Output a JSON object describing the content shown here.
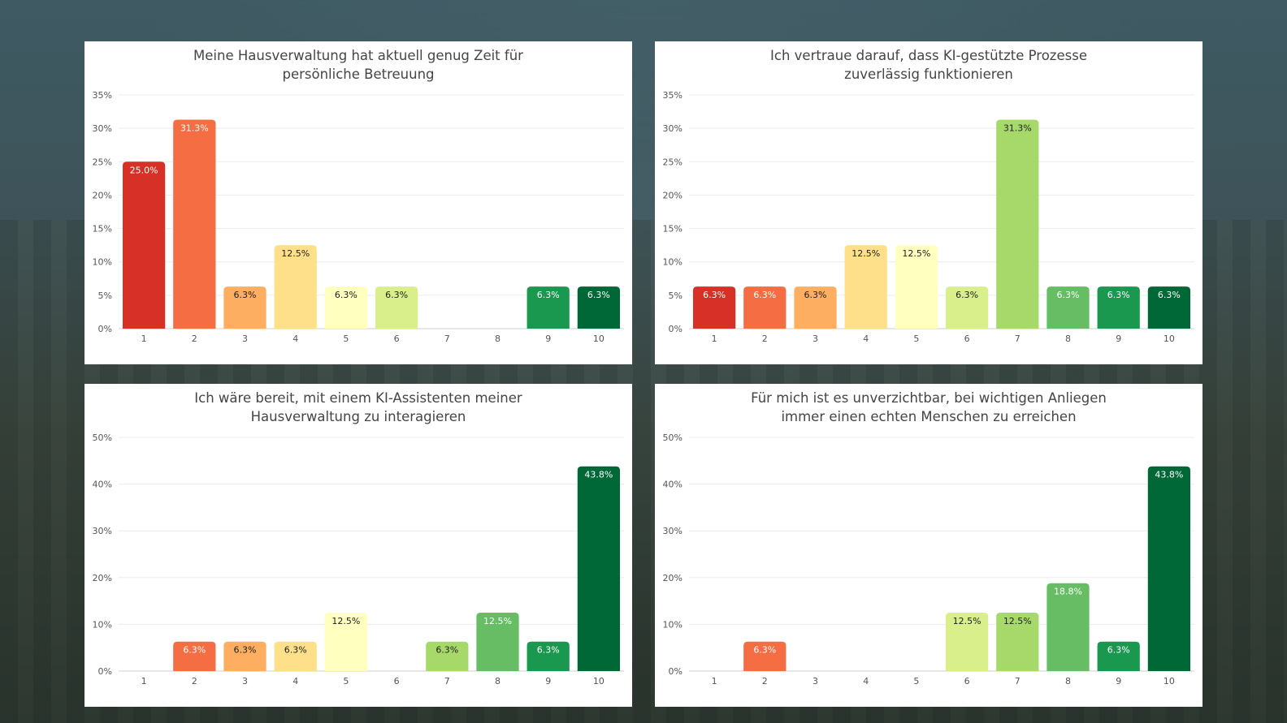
{
  "colors": {
    "1": "#d73027",
    "2": "#f46d43",
    "3": "#fdae61",
    "4": "#fee08b",
    "5": "#ffffbf",
    "6": "#d9ef8b",
    "7": "#a6d96a",
    "8": "#66bd63",
    "9": "#1a9850",
    "10": "#006837"
  },
  "chart_data": [
    {
      "type": "bar",
      "title": "Meine Hausverwaltung hat aktuell genug Zeit für\npersönliche Betreuung",
      "categories": [
        "1",
        "2",
        "3",
        "4",
        "5",
        "6",
        "7",
        "8",
        "9",
        "10"
      ],
      "values": [
        25.0,
        31.3,
        6.3,
        12.5,
        6.3,
        6.3,
        0,
        0,
        6.3,
        6.3
      ],
      "value_labels": [
        "25.0%",
        "31.3%",
        "6.3%",
        "12.5%",
        "6.3%",
        "6.3%",
        "",
        "",
        "6.3%",
        "6.3%"
      ],
      "ylim": [
        0,
        35
      ],
      "yticks": [
        "0%",
        "5%",
        "10%",
        "15%",
        "20%",
        "25%",
        "30%",
        "35%"
      ],
      "xlabel": "",
      "ylabel": "",
      "grid": true,
      "legend": "none"
    },
    {
      "type": "bar",
      "title": "Ich vertraue darauf, dass KI-gestützte Prozesse\nzuverlässig funktionieren",
      "categories": [
        "1",
        "2",
        "3",
        "4",
        "5",
        "6",
        "7",
        "8",
        "9",
        "10"
      ],
      "values": [
        6.3,
        6.3,
        6.3,
        12.5,
        12.5,
        6.3,
        31.3,
        6.3,
        6.3,
        6.3
      ],
      "value_labels": [
        "6.3%",
        "6.3%",
        "6.3%",
        "12.5%",
        "12.5%",
        "6.3%",
        "31.3%",
        "6.3%",
        "6.3%",
        "6.3%"
      ],
      "ylim": [
        0,
        35
      ],
      "yticks": [
        "0%",
        "5%",
        "10%",
        "15%",
        "20%",
        "25%",
        "30%",
        "35%"
      ],
      "xlabel": "",
      "ylabel": "",
      "grid": true,
      "legend": "none"
    },
    {
      "type": "bar",
      "title": "Ich wäre bereit, mit einem KI-Assistenten meiner\nHausverwaltung zu interagieren",
      "categories": [
        "1",
        "2",
        "3",
        "4",
        "5",
        "6",
        "7",
        "8",
        "9",
        "10"
      ],
      "values": [
        0,
        6.3,
        6.3,
        6.3,
        12.5,
        0,
        6.3,
        12.5,
        6.3,
        43.8
      ],
      "value_labels": [
        "",
        "6.3%",
        "6.3%",
        "6.3%",
        "12.5%",
        "",
        "6.3%",
        "12.5%",
        "6.3%",
        "43.8%"
      ],
      "ylim": [
        0,
        50
      ],
      "yticks": [
        "0%",
        "10%",
        "20%",
        "30%",
        "40%",
        "50%"
      ],
      "xlabel": "",
      "ylabel": "",
      "grid": true,
      "legend": "none"
    },
    {
      "type": "bar",
      "title": "Für mich ist es unverzichtbar, bei wichtigen Anliegen\nimmer einen echten Menschen zu erreichen",
      "categories": [
        "1",
        "2",
        "3",
        "4",
        "5",
        "6",
        "7",
        "8",
        "9",
        "10"
      ],
      "values": [
        0,
        6.3,
        0,
        0,
        0,
        12.5,
        12.5,
        18.8,
        6.3,
        43.8
      ],
      "value_labels": [
        "",
        "6.3%",
        "",
        "",
        "",
        "12.5%",
        "12.5%",
        "18.8%",
        "6.3%",
        "43.8%"
      ],
      "ylim": [
        0,
        50
      ],
      "yticks": [
        "0%",
        "10%",
        "20%",
        "30%",
        "40%",
        "50%"
      ],
      "xlabel": "",
      "ylabel": "",
      "grid": true,
      "legend": "none"
    }
  ]
}
